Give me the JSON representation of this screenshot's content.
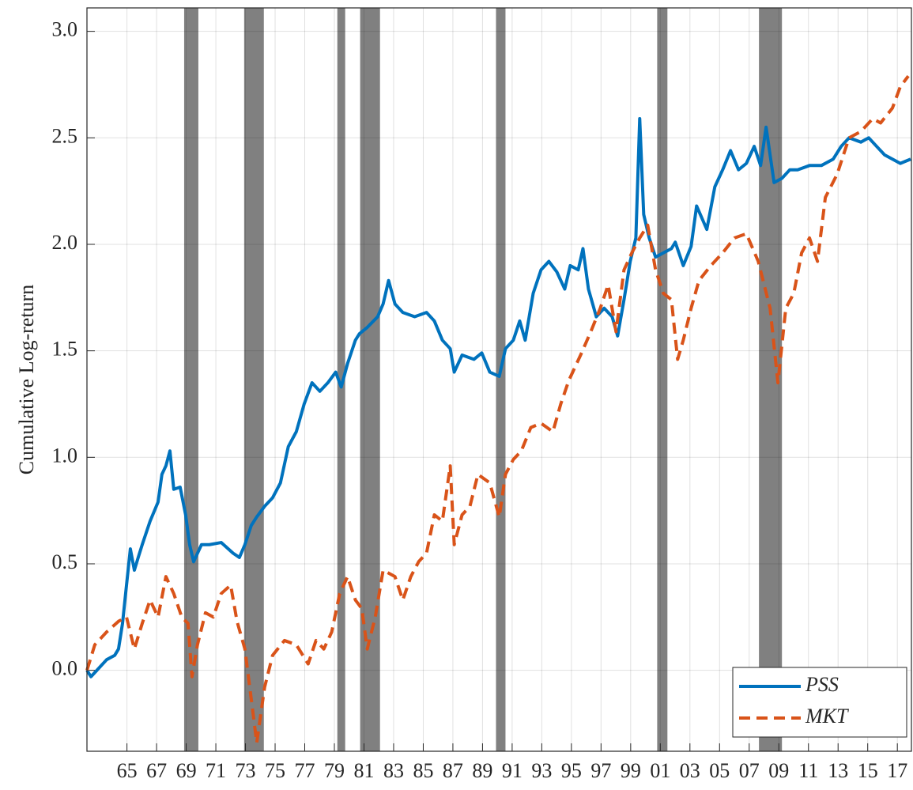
{
  "chart_data": {
    "type": "line",
    "y_label": "Cumulative Log-return",
    "xlim": [
      1962.3,
      2017.95
    ],
    "ylim": [
      -0.38,
      3.11
    ],
    "xticks": [
      {
        "value": 1965,
        "label": "65"
      },
      {
        "value": 1967,
        "label": "67"
      },
      {
        "value": 1969,
        "label": "69"
      },
      {
        "value": 1971,
        "label": "71"
      },
      {
        "value": 1973,
        "label": "73"
      },
      {
        "value": 1975,
        "label": "75"
      },
      {
        "value": 1977,
        "label": "77"
      },
      {
        "value": 1979,
        "label": "79"
      },
      {
        "value": 1981,
        "label": "81"
      },
      {
        "value": 1983,
        "label": "83"
      },
      {
        "value": 1985,
        "label": "85"
      },
      {
        "value": 1987,
        "label": "87"
      },
      {
        "value": 1989,
        "label": "89"
      },
      {
        "value": 1991,
        "label": "91"
      },
      {
        "value": 1993,
        "label": "93"
      },
      {
        "value": 1995,
        "label": "95"
      },
      {
        "value": 1997,
        "label": "97"
      },
      {
        "value": 1999,
        "label": "99"
      },
      {
        "value": 2001,
        "label": "01"
      },
      {
        "value": 2003,
        "label": "03"
      },
      {
        "value": 2005,
        "label": "05"
      },
      {
        "value": 2007,
        "label": "07"
      },
      {
        "value": 2009,
        "label": "09"
      },
      {
        "value": 2011,
        "label": "11"
      },
      {
        "value": 2013,
        "label": "13"
      },
      {
        "value": 2015,
        "label": "15"
      },
      {
        "value": 2017,
        "label": "17"
      }
    ],
    "yticks": [
      {
        "value": 0,
        "label": "0.0"
      },
      0.5,
      {
        "value": 1,
        "label": "1.0"
      },
      1.5,
      {
        "value": 2,
        "label": "2.0"
      },
      2.5,
      {
        "value": 3,
        "label": "3.0"
      }
    ],
    "grid": true,
    "legend": "lower right",
    "shaded_regions": [
      [
        1968.86,
        1969.82
      ],
      [
        1972.91,
        1974.24
      ],
      [
        1979.2,
        1979.73
      ],
      [
        1980.74,
        1982.08
      ],
      [
        1989.91,
        1990.55
      ],
      [
        2000.79,
        2001.48
      ],
      [
        2007.66,
        2009.21
      ]
    ],
    "shade_color": "#808080",
    "series": [
      {
        "name": "PSS",
        "color": "#0072BD",
        "dashed": false,
        "x": [
          1962.3,
          1962.57,
          1963.1,
          1963.63,
          1964.17,
          1964.43,
          1964.7,
          1964.97,
          1965.23,
          1965.5,
          1965.76,
          1966.03,
          1966.56,
          1967.1,
          1967.36,
          1967.63,
          1967.9,
          1968.16,
          1968.59,
          1968.96,
          1969.23,
          1969.5,
          1970.03,
          1970.56,
          1971.36,
          1972.16,
          1972.59,
          1972.96,
          1973.39,
          1973.76,
          1974.29,
          1974.83,
          1975.36,
          1975.89,
          1976.43,
          1976.96,
          1977.49,
          1978.02,
          1978.56,
          1979.09,
          1979.46,
          1979.89,
          1980.42,
          1980.69,
          1981.22,
          1981.92,
          1982.29,
          1982.66,
          1983.09,
          1983.62,
          1984.42,
          1985.22,
          1985.75,
          1986.29,
          1986.82,
          1987.09,
          1987.62,
          1988.42,
          1988.95,
          1989.49,
          1990.13,
          1990.55,
          1991.08,
          1991.51,
          1991.88,
          1992.42,
          1992.95,
          1993.48,
          1994.02,
          1994.55,
          1994.92,
          1995.46,
          1995.78,
          1996.15,
          1996.68,
          1997.21,
          1997.75,
          1998.12,
          1998.55,
          1998.97,
          1999.35,
          1999.61,
          1999.88,
          2000.25,
          2000.68,
          2001.21,
          2001.75,
          2002.01,
          2002.55,
          2003.08,
          2003.45,
          2004.14,
          2004.68,
          2005.21,
          2005.74,
          2006.28,
          2006.81,
          2007.34,
          2007.77,
          2008.14,
          2008.68,
          2009.21,
          2009.74,
          2010.27,
          2011.07,
          2011.87,
          2012.67,
          2013.21,
          2013.74,
          2014.54,
          2015.07,
          2015.6,
          2016.14,
          2016.67,
          2017.2,
          2017.9
        ],
        "values": [
          0,
          -0.03,
          0.01,
          0.05,
          0.07,
          0.1,
          0.22,
          0.4,
          0.57,
          0.47,
          0.53,
          0.59,
          0.7,
          0.79,
          0.92,
          0.96,
          1.03,
          0.85,
          0.86,
          0.73,
          0.59,
          0.51,
          0.59,
          0.59,
          0.6,
          0.55,
          0.53,
          0.59,
          0.68,
          0.72,
          0.77,
          0.81,
          0.88,
          1.05,
          1.12,
          1.25,
          1.35,
          1.31,
          1.35,
          1.4,
          1.33,
          1.44,
          1.55,
          1.58,
          1.61,
          1.66,
          1.72,
          1.83,
          1.72,
          1.68,
          1.66,
          1.68,
          1.64,
          1.55,
          1.51,
          1.4,
          1.48,
          1.46,
          1.49,
          1.4,
          1.38,
          1.51,
          1.55,
          1.64,
          1.55,
          1.77,
          1.88,
          1.92,
          1.87,
          1.79,
          1.9,
          1.88,
          1.98,
          1.79,
          1.66,
          1.7,
          1.66,
          1.57,
          1.74,
          1.92,
          2.03,
          2.59,
          2.14,
          2.03,
          1.94,
          1.96,
          1.98,
          2.01,
          1.9,
          1.99,
          2.18,
          2.07,
          2.27,
          2.35,
          2.44,
          2.35,
          2.38,
          2.46,
          2.37,
          2.55,
          2.29,
          2.31,
          2.35,
          2.35,
          2.37,
          2.37,
          2.4,
          2.46,
          2.5,
          2.48,
          2.5,
          2.46,
          2.42,
          2.4,
          2.38,
          2.4
        ]
      },
      {
        "name": "MKT",
        "color": "#D95319",
        "dashed": true,
        "x": [
          1962.3,
          1962.83,
          1963.63,
          1964.43,
          1964.97,
          1965.5,
          1966.03,
          1966.56,
          1967.1,
          1967.63,
          1968.16,
          1968.7,
          1969.12,
          1969.39,
          1969.76,
          1970.3,
          1970.83,
          1971.36,
          1972.0,
          1972.43,
          1972.96,
          1973.49,
          1973.76,
          1974.29,
          1974.83,
          1975.63,
          1976.43,
          1977.23,
          1977.76,
          1978.29,
          1978.82,
          1979.36,
          1979.89,
          1980.42,
          1980.85,
          1981.22,
          1981.76,
          1982.29,
          1983.09,
          1983.62,
          1984.16,
          1984.69,
          1985.22,
          1985.75,
          1986.29,
          1986.82,
          1987.09,
          1987.62,
          1988.15,
          1988.69,
          1989.49,
          1990.13,
          1990.55,
          1991.08,
          1991.62,
          1992.26,
          1992.95,
          1993.75,
          1994.28,
          1994.82,
          1995.62,
          1996.31,
          1996.95,
          1997.48,
          1998.01,
          1998.55,
          1999.08,
          1999.61,
          2000.15,
          2000.68,
          2001.21,
          2001.75,
          2002.17,
          2002.55,
          2003.08,
          2003.61,
          2004.41,
          2005.21,
          2006.01,
          2006.81,
          2007.61,
          2008.41,
          2008.94,
          2009.47,
          2010.01,
          2010.54,
          2011.07,
          2011.61,
          2012.14,
          2012.94,
          2013.74,
          2014.54,
          2015.34,
          2015.87,
          2016.67,
          2017.2,
          2017.74
        ],
        "values": [
          0,
          0.12,
          0.18,
          0.23,
          0.25,
          0.1,
          0.22,
          0.33,
          0.25,
          0.44,
          0.36,
          0.25,
          0.22,
          -0.03,
          0.12,
          0.27,
          0.25,
          0.36,
          0.4,
          0.23,
          0.1,
          -0.19,
          -0.34,
          -0.08,
          0.07,
          0.14,
          0.12,
          0.03,
          0.14,
          0.1,
          0.18,
          0.36,
          0.44,
          0.33,
          0.29,
          0.1,
          0.25,
          0.47,
          0.44,
          0.33,
          0.44,
          0.51,
          0.55,
          0.73,
          0.7,
          0.96,
          0.59,
          0.73,
          0.77,
          0.92,
          0.88,
          0.72,
          0.92,
          0.99,
          1.03,
          1.14,
          1.16,
          1.12,
          1.25,
          1.36,
          1.48,
          1.59,
          1.7,
          1.81,
          1.59,
          1.88,
          1.96,
          2.03,
          2.09,
          1.88,
          1.77,
          1.74,
          1.46,
          1.55,
          1.7,
          1.83,
          1.9,
          1.96,
          2.03,
          2.05,
          1.92,
          1.7,
          1.35,
          1.7,
          1.77,
          1.96,
          2.03,
          1.92,
          2.22,
          2.33,
          2.5,
          2.53,
          2.59,
          2.57,
          2.64,
          2.74,
          2.79
        ]
      }
    ]
  }
}
